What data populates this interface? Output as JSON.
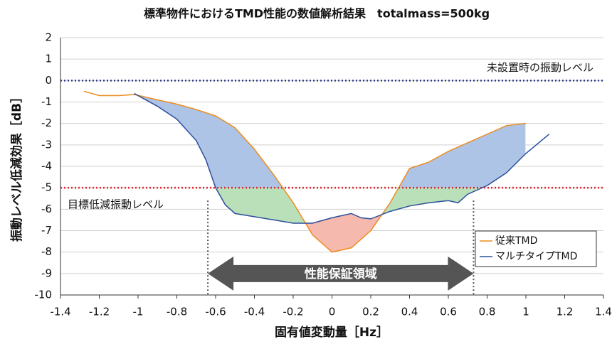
{
  "chart_data": {
    "type": "line",
    "title": "標準物件におけるTMD性能の数値解析結果　totalmass=500kg",
    "x_label": "固有値変動量［Hz］",
    "y_label": "振動レベル低減効果［dB］",
    "xlim": [
      -1.4,
      1.4
    ],
    "xticks": [
      -1.4,
      -1.2,
      -1,
      -0.8,
      -0.6,
      -0.4,
      -0.2,
      0,
      0.2,
      0.4,
      0.6,
      0.8,
      1,
      1.2,
      1.4
    ],
    "ylim": [
      -10,
      2
    ],
    "yticks": [
      2,
      1,
      0,
      -1,
      -2,
      -3,
      -4,
      -5,
      -6,
      -7,
      -8,
      -9,
      -10
    ],
    "grid": true,
    "legend": "lower right",
    "series": [
      {
        "name": "従来TMD",
        "color": "#ee8c1e",
        "x": [
          -1.28,
          -1.2,
          -1.1,
          -1.02,
          -0.9,
          -0.8,
          -0.7,
          -0.6,
          -0.5,
          -0.4,
          -0.3,
          -0.2,
          -0.1,
          0,
          0.1,
          0.2,
          0.3,
          0.35,
          0.4,
          0.5,
          0.6,
          0.7,
          0.8,
          0.9,
          1.0
        ],
        "values": [
          -0.5,
          -0.7,
          -0.7,
          -0.65,
          -0.9,
          -1.1,
          -1.35,
          -1.65,
          -2.2,
          -3.2,
          -4.4,
          -5.7,
          -7.2,
          -8.0,
          -7.8,
          -7.0,
          -5.7,
          -4.9,
          -4.1,
          -3.8,
          -3.3,
          -2.9,
          -2.5,
          -2.1,
          -2.0
        ]
      },
      {
        "name": "マルチタイプTMD",
        "color": "#2c4f9c",
        "x": [
          -1.02,
          -0.9,
          -0.8,
          -0.7,
          -0.65,
          -0.6,
          -0.55,
          -0.5,
          -0.4,
          -0.3,
          -0.2,
          -0.1,
          0,
          0.1,
          0.15,
          0.2,
          0.3,
          0.4,
          0.5,
          0.6,
          0.65,
          0.7,
          0.8,
          0.9,
          1.0,
          1.12
        ],
        "values": [
          -0.6,
          -1.2,
          -1.8,
          -2.8,
          -3.7,
          -5.0,
          -5.8,
          -6.2,
          -6.35,
          -6.5,
          -6.65,
          -6.65,
          -6.4,
          -6.2,
          -6.4,
          -6.45,
          -6.1,
          -5.85,
          -5.7,
          -5.6,
          -5.7,
          -5.3,
          -4.9,
          -4.3,
          -3.4,
          -2.5
        ]
      }
    ],
    "area_colors": {
      "better_above_target": "#aec4e6",
      "better_below_target": "#b9e0b9",
      "worse": "#f6b9ae"
    },
    "reference_lines": [
      {
        "value": 0,
        "label": "未設置時の振動レベル",
        "color": "#2c3e80"
      },
      {
        "value": -5,
        "label": "目標低減振動レベル",
        "color": "#e0202a"
      }
    ],
    "band": {
      "from": -0.64,
      "to": 0.73,
      "y": -9,
      "label": "性能保証領域",
      "color": "#555555"
    }
  }
}
